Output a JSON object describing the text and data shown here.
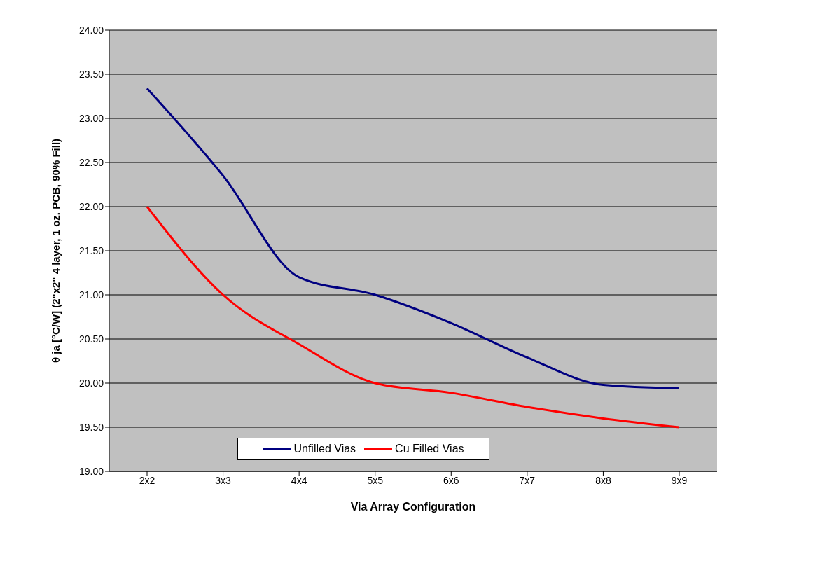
{
  "chart_data": {
    "type": "line",
    "xlabel": "Via Array Configuration",
    "ylabel": "θ ja [°C/W] (2\"x2\" 4 layer, 1 oz. PCB, 90% Fill)",
    "categories": [
      "2x2",
      "3x3",
      "4x4",
      "5x5",
      "6x6",
      "7x7",
      "8x8",
      "9x9"
    ],
    "series": [
      {
        "name": "Unfilled Vias",
        "color": "#000080",
        "values": [
          23.34,
          22.35,
          21.2,
          21.0,
          20.68,
          20.29,
          19.98,
          19.94
        ]
      },
      {
        "name": "Cu Filled Vias",
        "color": "#ff0000",
        "values": [
          22.0,
          21.0,
          20.44,
          20.0,
          19.89,
          19.73,
          19.6,
          19.5
        ]
      }
    ],
    "ylim": [
      19,
      24
    ],
    "yticks": [
      {
        "value": 19,
        "label": "19.00"
      },
      {
        "value": 19.5,
        "label": "19.50"
      },
      {
        "value": 20,
        "label": "20.00"
      },
      {
        "value": 20.5,
        "label": "20.50"
      },
      {
        "value": 21,
        "label": "21.00"
      },
      {
        "value": 21.5,
        "label": "21.50"
      },
      {
        "value": 22,
        "label": "22.00"
      },
      {
        "value": 22.5,
        "label": "22.50"
      },
      {
        "value": 23,
        "label": "23.00"
      },
      {
        "value": 23.5,
        "label": "23.50"
      },
      {
        "value": 24,
        "label": "24.00"
      }
    ],
    "grid": "y",
    "legend": "bottom",
    "marker": "none",
    "line_style": "solid"
  }
}
